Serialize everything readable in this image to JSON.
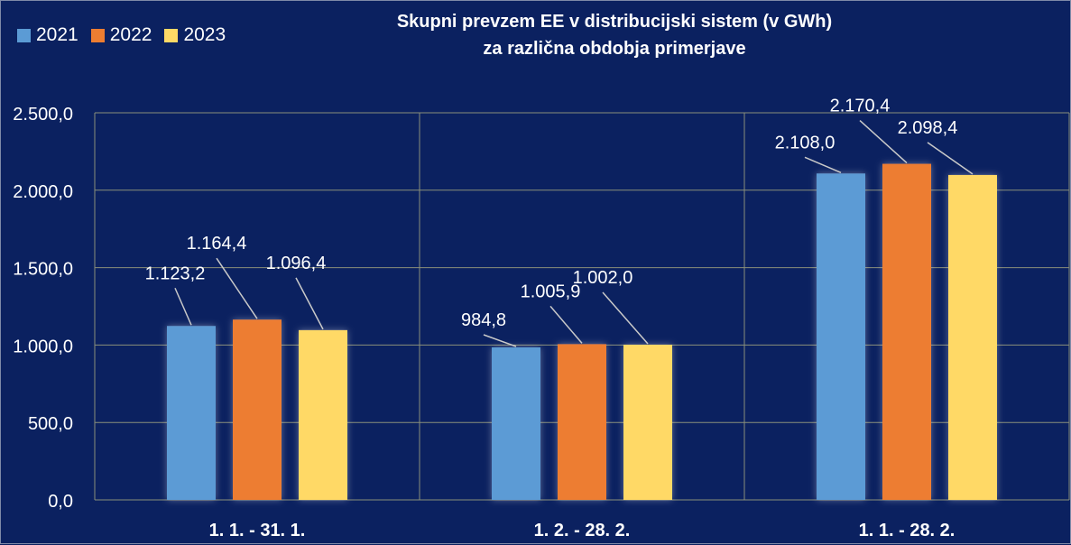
{
  "chart_data": {
    "type": "bar",
    "title": "Skupni prevzem EE v distribucijski sistem (v GWh)",
    "subtitle": "za različna obdobja primerjave",
    "categories": [
      "1. 1. - 31. 1.",
      "1. 2. - 28. 2.",
      "1. 1. - 28. 2."
    ],
    "series": [
      {
        "name": "2021",
        "color": "#5b9bd5",
        "values": [
          1123.2,
          984.8,
          2108.0
        ],
        "labels": [
          "1.123,2",
          "984,8",
          "2.108,0"
        ]
      },
      {
        "name": "2022",
        "color": "#ed7d31",
        "values": [
          1164.4,
          1005.9,
          2170.4
        ],
        "labels": [
          "1.164,4",
          "1.005,9",
          "2.170,4"
        ]
      },
      {
        "name": "2023",
        "color": "#ffd966",
        "values": [
          1096.4,
          1002.0,
          2098.4
        ],
        "labels": [
          "1.096,4",
          "1.002,0",
          "2.098,4"
        ]
      }
    ],
    "ylim": [
      0,
      2500
    ],
    "yticks": [
      0,
      500,
      1000,
      1500,
      2000,
      2500
    ],
    "ytick_labels": [
      "0,0",
      "500,0",
      "1.000,0",
      "1.500,0",
      "2.000,0",
      "2.500,0"
    ],
    "xlabel": "",
    "ylabel": "",
    "grid": true,
    "legend_position": "top-left"
  }
}
